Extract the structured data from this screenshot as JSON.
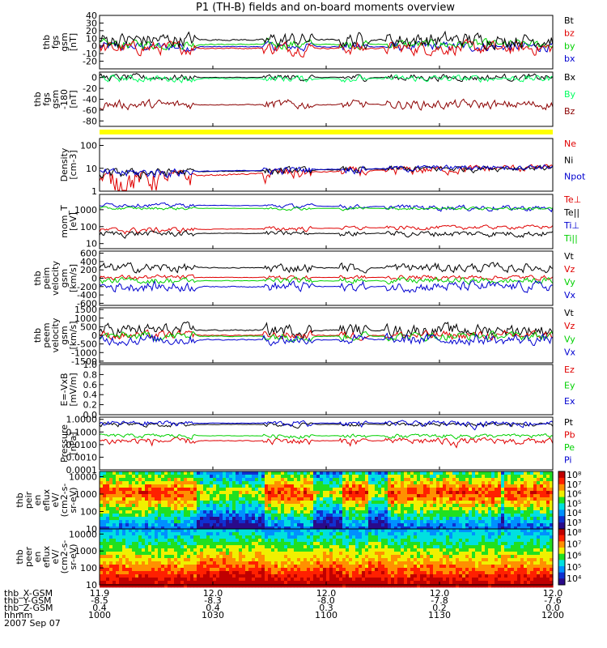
{
  "title": "P1 (TH-B) fields and on-board moments overview",
  "colors": {
    "black": "#000000",
    "red": "#e00000",
    "green": "#00d000",
    "blue": "#0000d0",
    "dark_red": "#8b0000",
    "bright_green": "#00ff60",
    "yellow": "#ffff00"
  },
  "chart_data": [
    {
      "type": "line",
      "ylabel": [
        "thb",
        "fgs",
        "gsm",
        "[nT]"
      ],
      "ylim": [
        -30,
        40
      ],
      "ticks": [
        "40",
        "30",
        "20",
        "10",
        "0",
        "-10",
        "-20"
      ],
      "tick_values": [
        40,
        30,
        20,
        10,
        0,
        -10,
        -20
      ],
      "series": [
        {
          "name": "Bt",
          "color": "#000000"
        },
        {
          "name": "bz",
          "color": "#e00000"
        },
        {
          "name": "by",
          "color": "#00d000"
        },
        {
          "name": "bx",
          "color": "#0000d0"
        }
      ]
    },
    {
      "type": "line",
      "ylabel": [
        "thb",
        "fgs",
        "gsm",
        "-180"
      ],
      "ylabel_unit": "[nT]",
      "ylim": [
        -90,
        10
      ],
      "ticks": [
        "0",
        "-20",
        "-40",
        "-60",
        "-80"
      ],
      "tick_values": [
        0,
        -20,
        -40,
        -60,
        -80
      ],
      "series": [
        {
          "name": "Bx",
          "color": "#000000"
        },
        {
          "name": "By",
          "color": "#00ff60"
        },
        {
          "name": "Bz",
          "color": "#8b0000"
        }
      ]
    },
    {
      "type": "line",
      "ylabel": [
        "Density",
        "[cm-3]"
      ],
      "scale": "log",
      "ylim": [
        1,
        200
      ],
      "ticks": [
        "100",
        "10",
        "1"
      ],
      "tick_values": [
        100,
        10,
        1
      ],
      "series": [
        {
          "name": "Ne",
          "color": "#e00000"
        },
        {
          "name": "Ni",
          "color": "#000000"
        },
        {
          "name": "Npot",
          "color": "#0000d0"
        }
      ]
    },
    {
      "type": "line",
      "ylabel": [
        "mom_T",
        "[eV]"
      ],
      "scale": "log",
      "ylim": [
        5,
        8000
      ],
      "ticks": [
        "1000",
        "100",
        "10"
      ],
      "tick_values": [
        1000,
        100,
        10
      ],
      "series": [
        {
          "name": "Te⊥",
          "color": "#e00000"
        },
        {
          "name": "Te||",
          "color": "#000000"
        },
        {
          "name": "Ti⊥",
          "color": "#0000d0"
        },
        {
          "name": "Ti||",
          "color": "#00d000"
        }
      ]
    },
    {
      "type": "line",
      "ylabel": [
        "thb",
        "peim",
        "velocity",
        "gsm",
        "[km/s]"
      ],
      "ylim": [
        -650,
        650
      ],
      "ticks": [
        "600",
        "400",
        "200",
        "0",
        "-200",
        "-400",
        "-600"
      ],
      "tick_values": [
        600,
        400,
        200,
        0,
        -200,
        -400,
        -600
      ],
      "series": [
        {
          "name": "Vt",
          "color": "#000000"
        },
        {
          "name": "Vz",
          "color": "#e00000"
        },
        {
          "name": "Vy",
          "color": "#00d000"
        },
        {
          "name": "Vx",
          "color": "#0000d0"
        }
      ]
    },
    {
      "type": "line",
      "ylabel": [
        "thb",
        "peem",
        "velocity",
        "gsm",
        "[km/s]"
      ],
      "ylim": [
        -1600,
        1600
      ],
      "ticks": [
        "1500",
        "1000",
        "500",
        "0",
        "-500",
        "-1000",
        "-1500"
      ],
      "tick_values": [
        1500,
        1000,
        500,
        0,
        -500,
        -1000,
        -1500
      ],
      "series": [
        {
          "name": "Vt",
          "color": "#000000"
        },
        {
          "name": "Vz",
          "color": "#e00000"
        },
        {
          "name": "Vy",
          "color": "#00d000"
        },
        {
          "name": "Vx",
          "color": "#0000d0"
        }
      ]
    },
    {
      "type": "line",
      "ylabel": [
        "E=-VxB",
        "[mV/m]"
      ],
      "ylim": [
        0,
        1
      ],
      "ticks": [
        "1.0",
        "0.8",
        "0.6",
        "0.4",
        "0.2",
        "0.0"
      ],
      "tick_values": [
        1.0,
        0.8,
        0.6,
        0.4,
        0.2,
        0.0
      ],
      "series": [
        {
          "name": "Ez",
          "color": "#e00000"
        },
        {
          "name": "Ey",
          "color": "#00d000"
        },
        {
          "name": "Ex",
          "color": "#0000d0"
        }
      ]
    },
    {
      "type": "line",
      "ylabel": [
        "Pressure",
        "[nPa]"
      ],
      "scale": "log",
      "ylim": [
        0.0001,
        1.5
      ],
      "ticks": [
        "1.0000",
        "0.1000",
        "0.0100",
        "0.0010",
        "0.0001"
      ],
      "tick_values": [
        1.0,
        0.1,
        0.01,
        0.001,
        0.0001
      ],
      "series": [
        {
          "name": "Pt",
          "color": "#000000"
        },
        {
          "name": "Pb",
          "color": "#e00000"
        },
        {
          "name": "Pe",
          "color": "#00d000"
        },
        {
          "name": "Pi",
          "color": "#0000d0"
        }
      ]
    },
    {
      "type": "heatmap",
      "ylabel": [
        "thb",
        "peir",
        "en",
        "eflux",
        "eV/",
        "(cm2-s-",
        "sr-eV)"
      ],
      "scale": "log",
      "ylim": [
        10,
        20000
      ],
      "ticks": [
        "10000",
        "1000",
        "100",
        "10"
      ],
      "tick_values": [
        10000,
        1000,
        100,
        10
      ],
      "colorbar": {
        "min_exp": 3,
        "max_exp": 8,
        "labels": [
          "10⁸",
          "10⁷",
          "10⁶",
          "10⁵",
          "10⁴",
          "10³"
        ]
      }
    },
    {
      "type": "heatmap",
      "ylabel": [
        "thb",
        "peer",
        "en",
        "eflux",
        "eV/",
        "(cm2-s-",
        "sr-eV)"
      ],
      "scale": "log",
      "ylim": [
        10,
        20000
      ],
      "ticks": [
        "10000",
        "1000",
        "100",
        "10"
      ],
      "tick_values": [
        10000,
        1000,
        100,
        10
      ],
      "colorbar": {
        "min_exp": 4,
        "max_exp": 8,
        "labels": [
          "10⁸",
          "10⁷",
          "10⁶",
          "10⁵",
          "10⁴"
        ]
      }
    }
  ],
  "x_axis": {
    "row_labels": [
      "thb_X-GSM",
      "thb_Y-GSM",
      "thb_Z-GSM",
      "hhmm",
      "2007 Sep 07"
    ],
    "columns": [
      {
        "X": "11.9",
        "Y": "-8.5",
        "Z": "0.4",
        "hhmm": "1000"
      },
      {
        "X": "12.0",
        "Y": "-8.3",
        "Z": "0.4",
        "hhmm": "1030"
      },
      {
        "X": "12.0",
        "Y": "-8.0",
        "Z": "0.3",
        "hhmm": "1100"
      },
      {
        "X": "12.0",
        "Y": "-7.8",
        "Z": "0.2",
        "hhmm": "1130"
      },
      {
        "X": "12.0",
        "Y": "-7.6",
        "Z": "0.0",
        "hhmm": "1200"
      }
    ]
  }
}
